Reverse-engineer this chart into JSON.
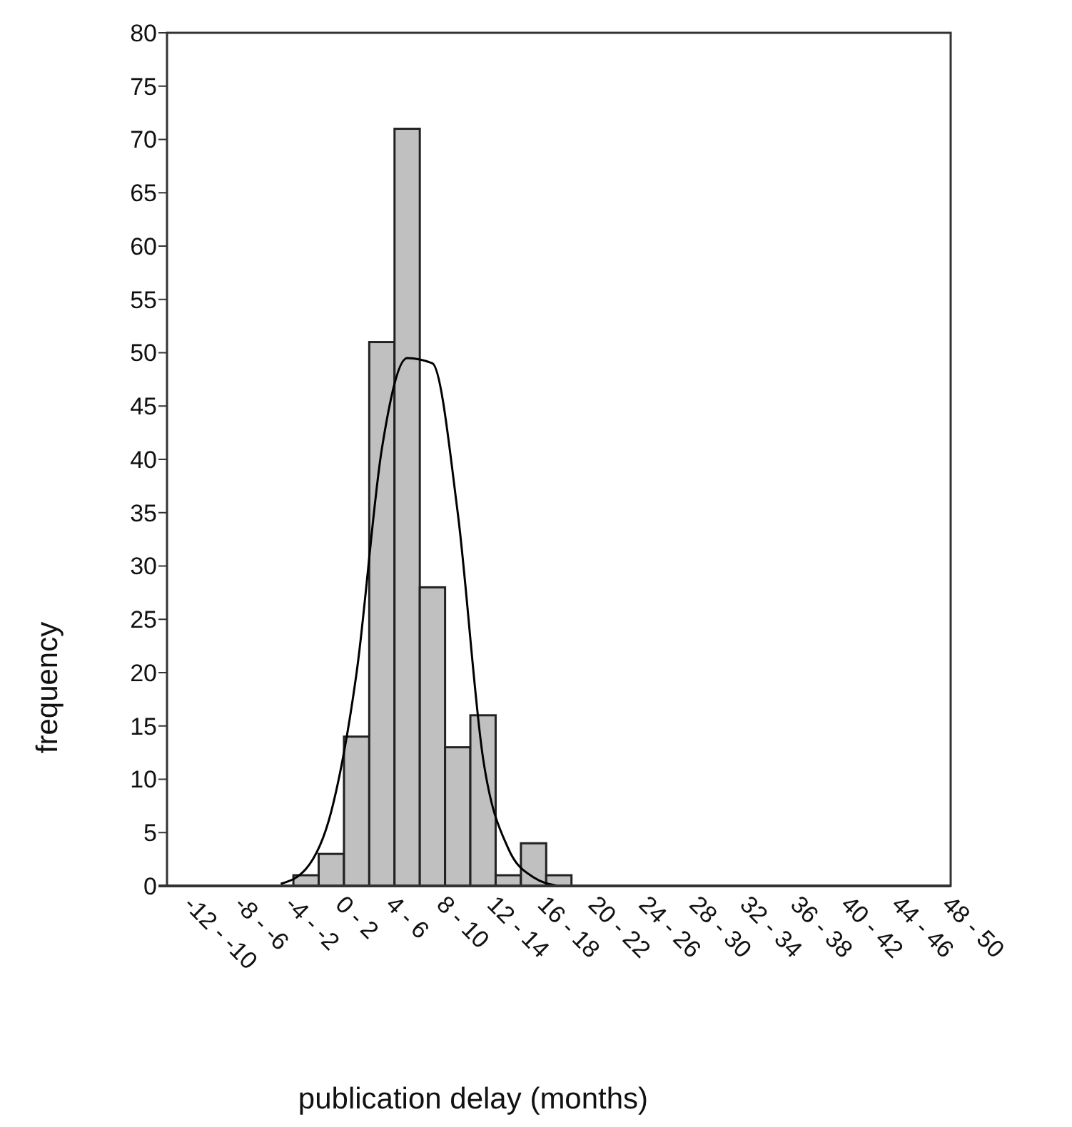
{
  "chart_data": {
    "type": "bar",
    "xlabel": "publication delay (months)",
    "ylabel": "frequency",
    "categories": [
      "-12 - -10",
      null,
      "-8 - -6",
      null,
      "-4 - -2",
      null,
      "0 - 2",
      null,
      "4 - 6",
      null,
      "8 - 10",
      null,
      "12 - 14",
      null,
      "16 - 18",
      null,
      "20 - 22",
      null,
      "24 - 26",
      null,
      "28 - 30",
      null,
      "32 - 34",
      null,
      "36 - 38",
      null,
      "40 - 42",
      null,
      "44 - 46",
      null,
      "48 - 50"
    ],
    "series": [
      {
        "color": "#c0c0c0",
        "values": [
          0,
          0,
          0,
          0,
          0,
          1,
          3,
          14,
          51,
          71,
          28,
          13,
          16,
          1,
          4,
          1,
          0,
          0,
          0,
          0,
          0,
          0,
          0,
          0,
          0,
          0,
          0,
          0,
          0,
          0,
          0
        ]
      },
      {
        "type": "line",
        "color": "#000000",
        "values": [
          null,
          null,
          null,
          null,
          0.2,
          1.6,
          7,
          20,
          41,
          49.5,
          49,
          35,
          12,
          3.5,
          0.8,
          0,
          null,
          null,
          null,
          null,
          null,
          null,
          null,
          null,
          null,
          null,
          null,
          null,
          null,
          null,
          null
        ]
      }
    ],
    "ylim": [
      0,
      80
    ],
    "yticks": [
      0,
      5,
      10,
      15,
      20,
      25,
      30,
      35,
      40,
      45,
      50,
      55,
      60,
      65,
      70,
      75,
      80
    ],
    "grid": false
  }
}
